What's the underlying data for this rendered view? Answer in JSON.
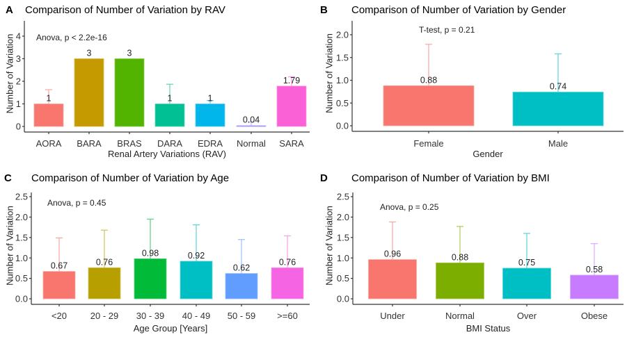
{
  "chart_data": [
    {
      "panel": "A",
      "type": "bar",
      "title": "Comparison of Number of Variation by RAV",
      "xlabel": "Renal Artery Variations (RAV)",
      "ylabel": "Number of Variation",
      "annotation": "Anova, p < 2.2e-16",
      "categories": [
        "AORA",
        "BARA",
        "BRAS",
        "DARA",
        "EDRA",
        "Normal",
        "SARA"
      ],
      "values": [
        1,
        3,
        3,
        1,
        1,
        0.04,
        1.79
      ],
      "value_labels": [
        "1",
        "3",
        "3",
        "1",
        "1",
        "0.04",
        "1.79"
      ],
      "error_upper": [
        1.63,
        null,
        null,
        1.87,
        1.15,
        0.2,
        2.2
      ],
      "colors": [
        "#F8766D",
        "#C49A00",
        "#53B400",
        "#00C094",
        "#00B6EB",
        "#A58AFF",
        "#FB61D7"
      ],
      "yticks": [
        0,
        1,
        2,
        3,
        4
      ],
      "ytick_labels": [
        "0",
        "1",
        "2",
        "3",
        "4"
      ],
      "ylim": [
        0,
        4.7
      ],
      "grid": false,
      "legend": "none"
    },
    {
      "panel": "B",
      "type": "bar",
      "title": "Comparison of Number of Variation by Gender",
      "xlabel": "Gender",
      "ylabel": "Number of Variation",
      "annotation": "T-test, p = 0.21",
      "categories": [
        "Female",
        "Male"
      ],
      "values": [
        0.88,
        0.74
      ],
      "value_labels": [
        "0.88",
        "0.74"
      ],
      "error_upper": [
        1.79,
        1.58
      ],
      "colors": [
        "#F8766D",
        "#00BFC4"
      ],
      "yticks": [
        0,
        0.5,
        1.0,
        1.5,
        2.0
      ],
      "ytick_labels": [
        "0.0",
        "0.5",
        "1.0",
        "1.5",
        "2.0"
      ],
      "ylim": [
        0,
        2.3
      ],
      "grid": false,
      "legend": "none"
    },
    {
      "panel": "C",
      "type": "bar",
      "title": "Comparison of Number of Variation by Age",
      "xlabel": "Age Group [Years]",
      "ylabel": "Number of Variation",
      "annotation": "Anova, p = 0.45",
      "categories": [
        "<20",
        "20 - 29",
        "30 - 39",
        "40 - 49",
        "50 - 59",
        ">=60"
      ],
      "values": [
        0.67,
        0.76,
        0.98,
        0.92,
        0.62,
        0.76
      ],
      "value_labels": [
        "0.67",
        "0.76",
        "0.98",
        "0.92",
        "0.62",
        "0.76"
      ],
      "error_upper": [
        1.49,
        1.68,
        1.95,
        1.81,
        1.45,
        1.54
      ],
      "colors": [
        "#F8766D",
        "#B79F00",
        "#00BA38",
        "#00BFC4",
        "#619CFF",
        "#F564E3"
      ],
      "yticks": [
        0,
        0.5,
        1.0,
        1.5,
        2.0,
        2.5
      ],
      "ytick_labels": [
        "0.0",
        "0.5",
        "1.0",
        "1.5",
        "2.0",
        "2.5"
      ],
      "ylim": [
        0,
        2.6
      ],
      "grid": false,
      "legend": "none"
    },
    {
      "panel": "D",
      "type": "bar",
      "title": "Comparison of Number of Variation by BMI",
      "xlabel": "BMI Status",
      "ylabel": "Number of Variation",
      "annotation": "Anova, p = 0.25",
      "categories": [
        "Under",
        "Normal",
        "Over",
        "Obese"
      ],
      "values": [
        0.96,
        0.88,
        0.75,
        0.58
      ],
      "value_labels": [
        "0.96",
        "0.88",
        "0.75",
        "0.58"
      ],
      "error_upper": [
        1.88,
        1.77,
        1.6,
        1.35
      ],
      "colors": [
        "#F8766D",
        "#7CAE00",
        "#00BFC4",
        "#C77CFF"
      ],
      "yticks": [
        0,
        0.5,
        1.0,
        1.5,
        2.0,
        2.5
      ],
      "ytick_labels": [
        "0.0",
        "0.5",
        "1.0",
        "1.5",
        "2.0",
        "2.5"
      ],
      "ylim": [
        0,
        2.6
      ],
      "grid": false,
      "legend": "none"
    }
  ]
}
